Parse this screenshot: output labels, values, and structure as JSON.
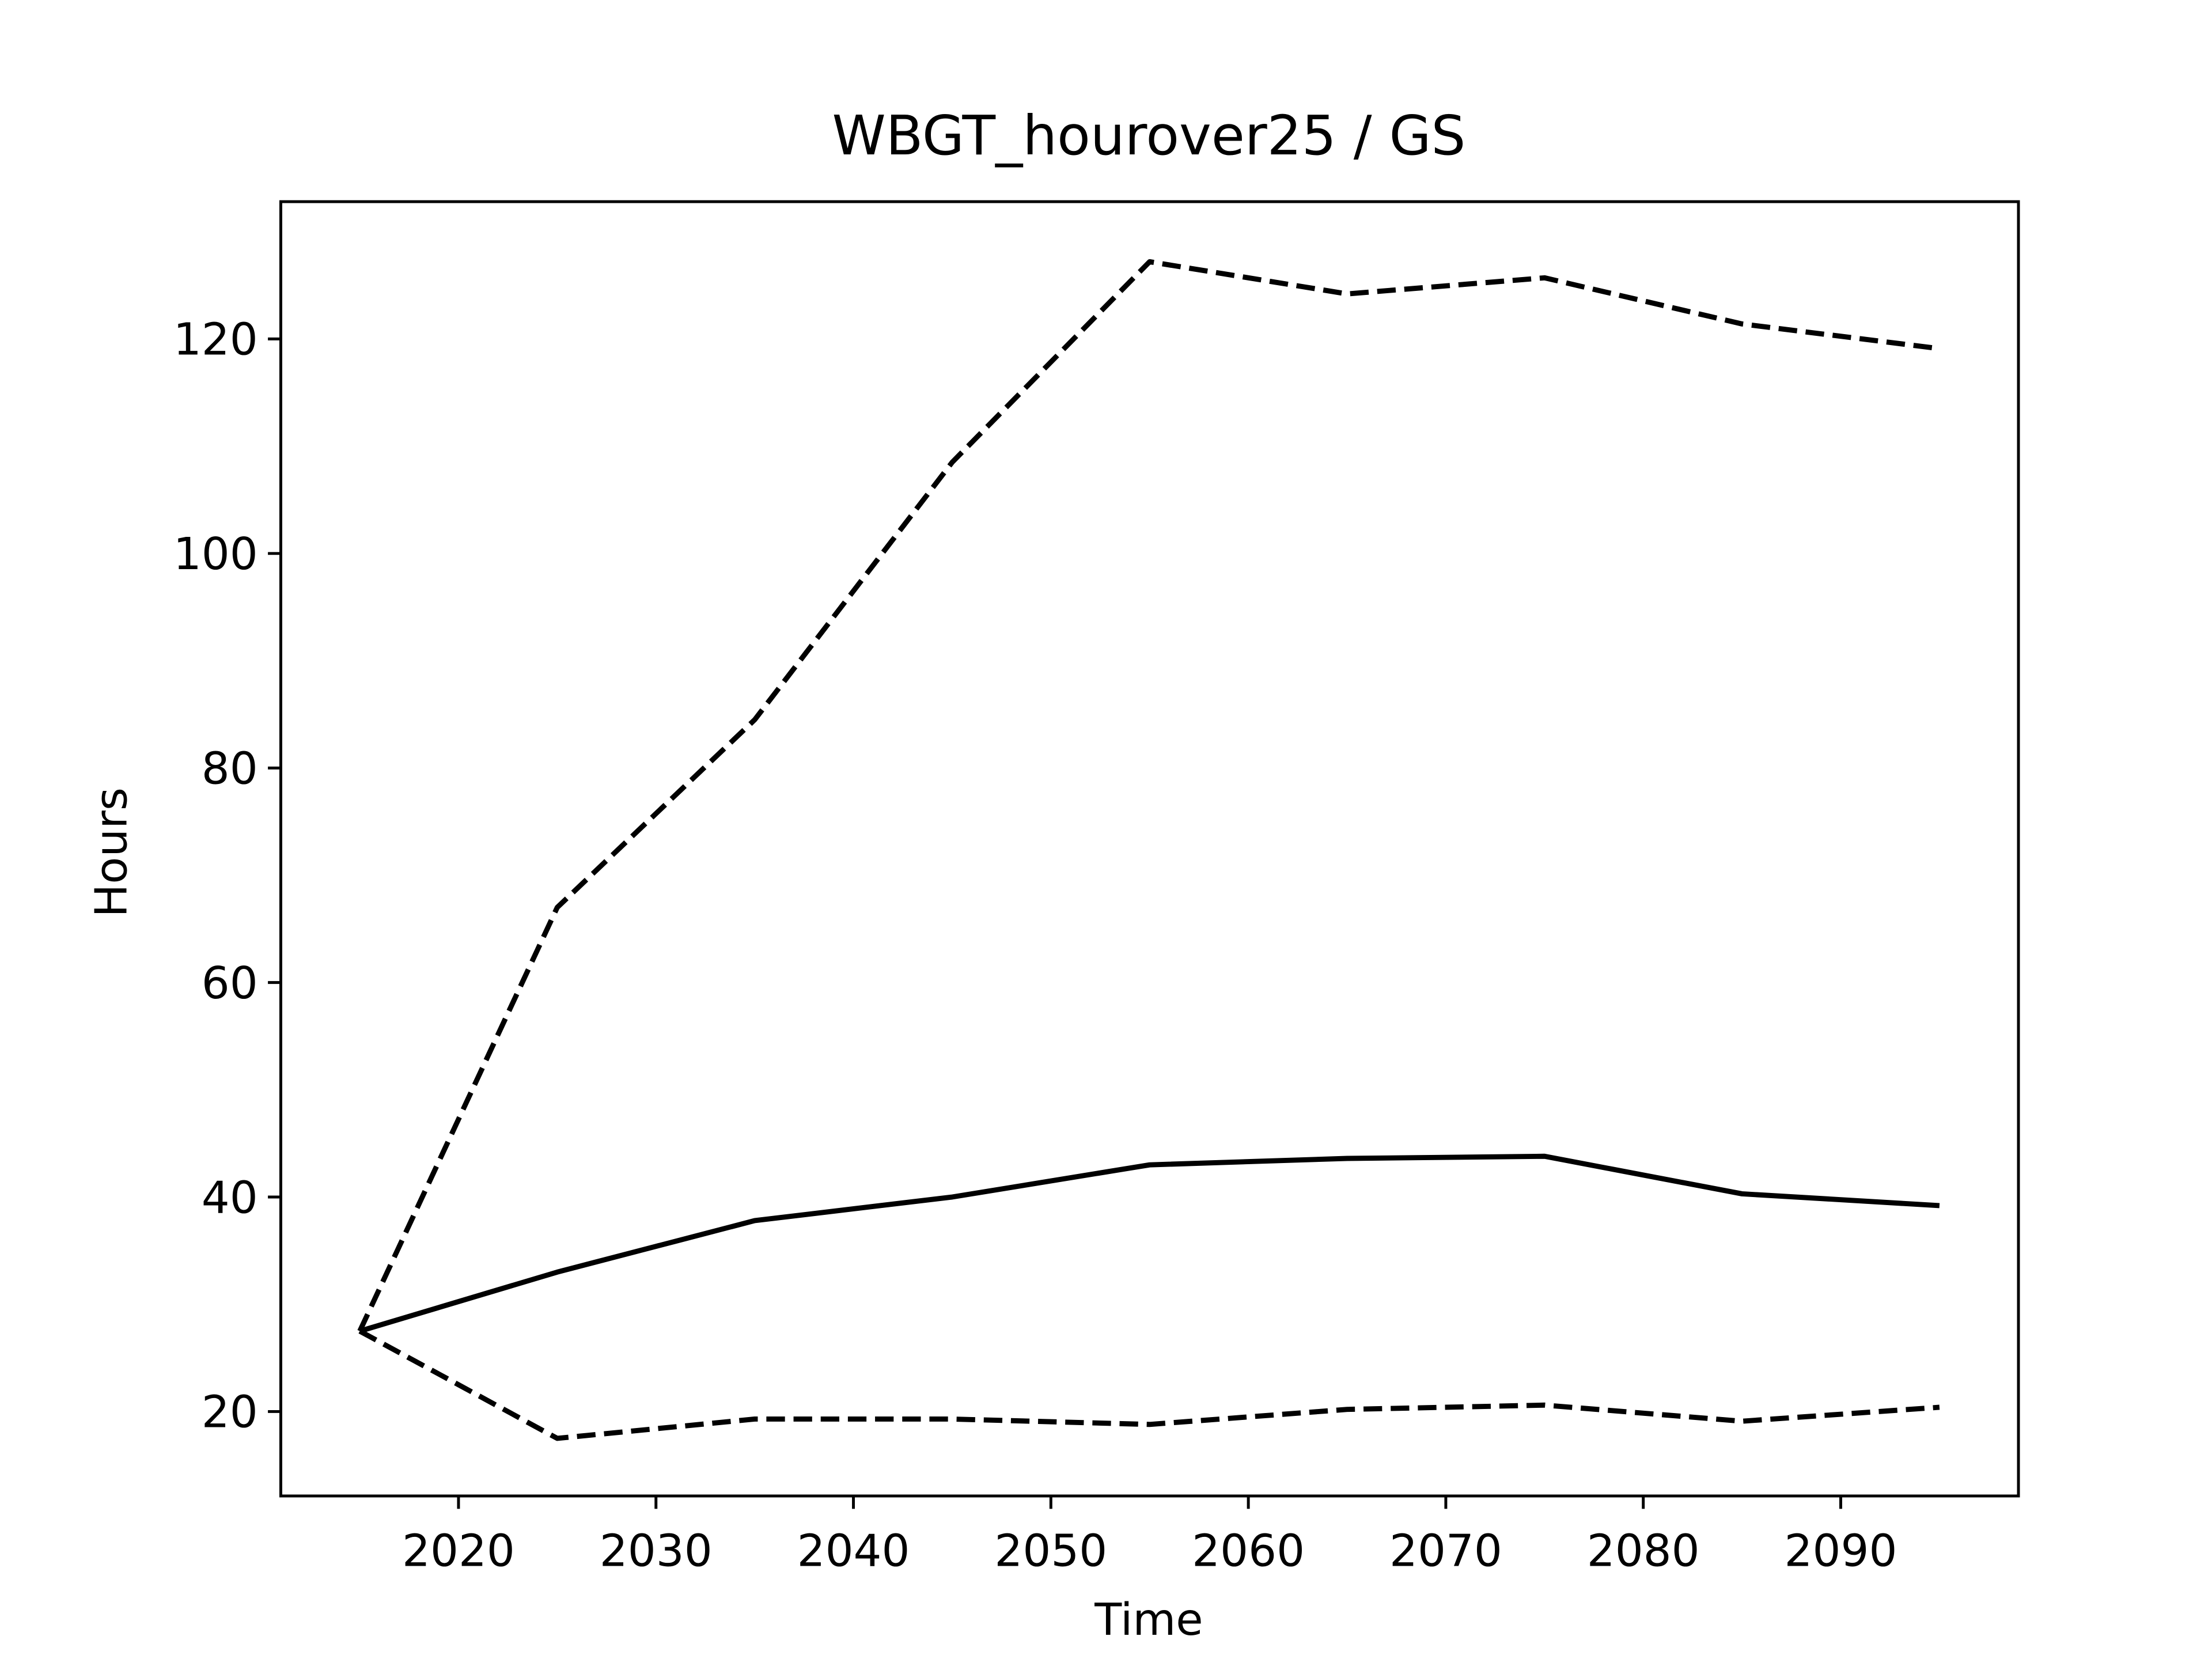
{
  "chart_data": {
    "type": "line",
    "title": "WBGT_hourover25 / GS",
    "x_label": "Time",
    "y_label": "Hours",
    "x": [
      2015,
      2025,
      2035,
      2045,
      2055,
      2065,
      2075,
      2085,
      2095
    ],
    "series": [
      {
        "color": "#000000",
        "dash": "solid",
        "values": [
          27.5,
          33,
          37.8,
          40,
          43,
          43.6,
          43.8,
          40.3,
          39.2
        ]
      },
      {
        "color": "#000000",
        "dash": "dashed",
        "values": [
          27.5,
          67,
          84.5,
          108.5,
          127.2,
          124.2,
          125.7,
          121.4,
          119.1
        ]
      },
      {
        "color": "#000000",
        "dash": "dashed",
        "values": [
          27.5,
          17.5,
          19.3,
          19.3,
          18.8,
          20.2,
          20.6,
          19.1,
          20.4
        ]
      }
    ],
    "xlim": [
      2011,
      2099
    ],
    "xticks": [
      2020,
      2030,
      2040,
      2050,
      2060,
      2070,
      2080,
      2090
    ],
    "ylim": [
      12.13,
      132.8
    ],
    "yticks": [
      20,
      40,
      60,
      80,
      100,
      120
    ],
    "grid": false
  }
}
